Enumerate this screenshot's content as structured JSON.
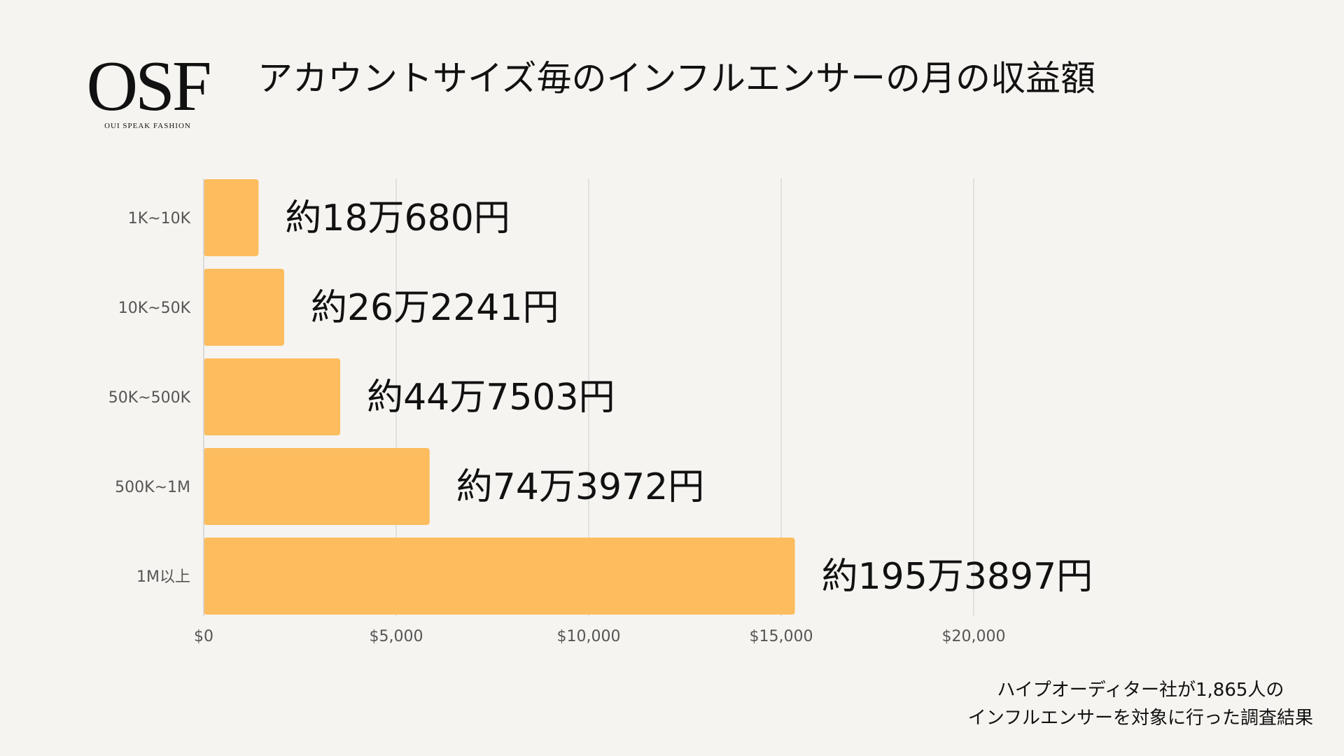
{
  "logo": {
    "mark": "OSF",
    "tagline": "OUI SPEAK FASHION"
  },
  "title": "アカウントサイズ毎のインフルエンサーの月の収益額",
  "note": {
    "line1": "ハイプオーディター社が1,865人の",
    "line2": "インフルエンサーを対象に行った調査結果"
  },
  "colors": {
    "bar": "#fdbd5e",
    "grid": "#d2d2d2",
    "axis_text": "#555555",
    "annotation": "#111111"
  },
  "chart_data": {
    "type": "bar",
    "orientation": "horizontal",
    "categories": [
      "1K~10K",
      "10K~50K",
      "50K~500K",
      "500K~1M",
      "1M以上"
    ],
    "values": [
      1425,
      2090,
      3547,
      5868,
      15356
    ],
    "annotations": [
      "約18万680円",
      "約26万2241円",
      "約44万7503円",
      "約74万3972円",
      "約195万3897円"
    ],
    "xlim": [
      0,
      20000
    ],
    "xticks": [
      0,
      5000,
      10000,
      15000,
      20000
    ],
    "xtick_labels": [
      "$0",
      "$5,000",
      "$10,000",
      "$15,000",
      "$20,000"
    ],
    "grid": "vertical",
    "xlabel": "",
    "ylabel": ""
  }
}
